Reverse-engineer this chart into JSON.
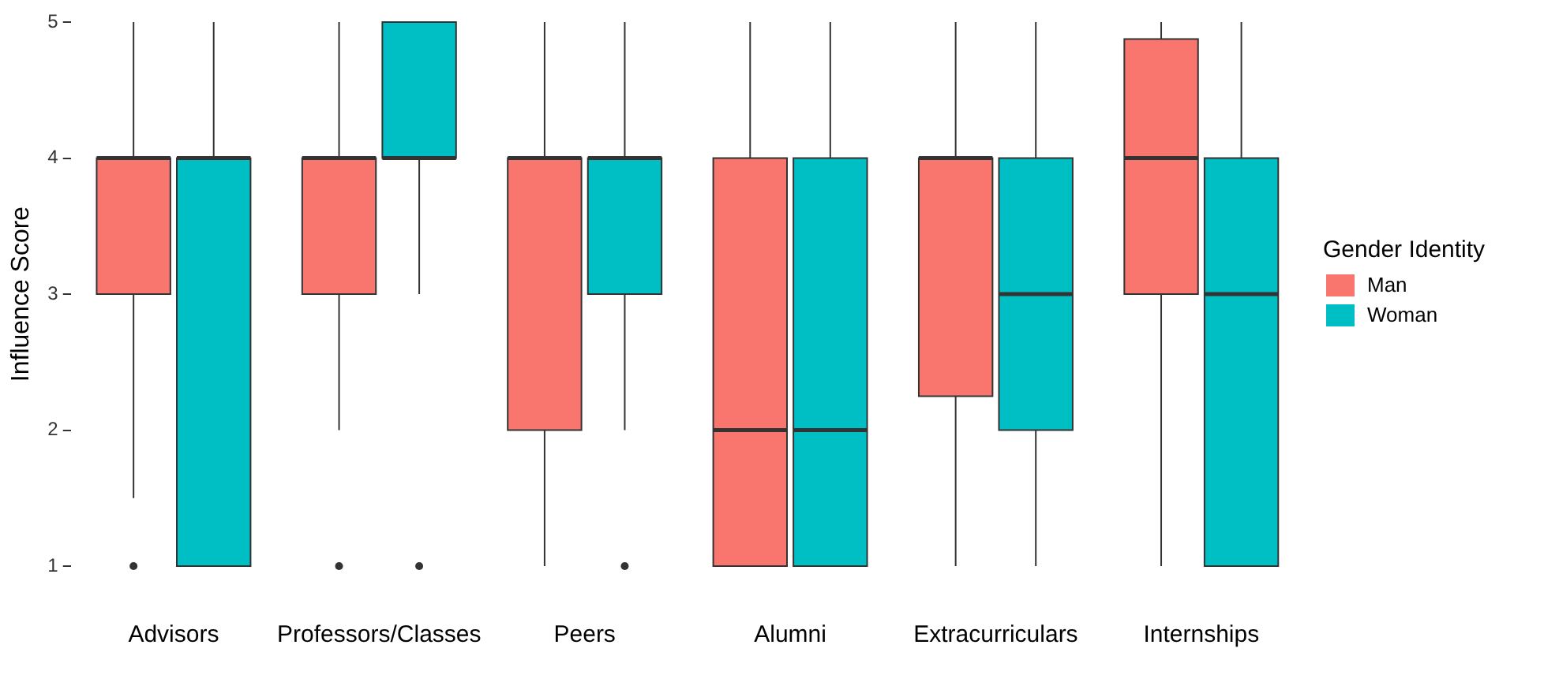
{
  "chart_data": {
    "type": "box",
    "ylabel": "Influence Score",
    "legend_title": "Gender Identity",
    "legend": "right",
    "grid": false,
    "categories": [
      "Advisors",
      "Professors/Classes",
      "Peers",
      "Alumni",
      "Extracurriculars",
      "Internships"
    ],
    "ylim": [
      1,
      5
    ],
    "yticks": [
      1,
      2,
      3,
      4,
      5
    ],
    "series": [
      {
        "name": "Man",
        "color": "#f8766d",
        "boxes": [
          {
            "low": 1.5,
            "q1": 3,
            "median": 4,
            "q3": 4,
            "high": 5,
            "outliers": [
              1
            ]
          },
          {
            "low": 2,
            "q1": 3,
            "median": 4,
            "q3": 4,
            "high": 5,
            "outliers": [
              1
            ]
          },
          {
            "low": 1,
            "q1": 2,
            "median": 4,
            "q3": 4,
            "high": 5
          },
          {
            "low": 1,
            "q1": 1,
            "median": 2,
            "q3": 4,
            "high": 5
          },
          {
            "low": 1,
            "q1": 2.25,
            "median": 4,
            "q3": 4,
            "high": 5
          },
          {
            "low": 1,
            "q1": 3,
            "median": 4,
            "q3": 4.875,
            "high": 5
          }
        ]
      },
      {
        "name": "Woman",
        "color": "#00bfc4",
        "boxes": [
          {
            "low": 1,
            "q1": 1,
            "median": 4,
            "q3": 4,
            "high": 5
          },
          {
            "low": 3,
            "q1": 4,
            "median": 4,
            "q3": 5,
            "high": 5,
            "outliers": [
              1
            ]
          },
          {
            "low": 2,
            "q1": 3,
            "median": 4,
            "q3": 4,
            "high": 5,
            "outliers": [
              1
            ]
          },
          {
            "low": 1,
            "q1": 1,
            "median": 2,
            "q3": 4,
            "high": 5
          },
          {
            "low": 1,
            "q1": 2,
            "median": 3,
            "q3": 4,
            "high": 5
          },
          {
            "low": 1,
            "q1": 1,
            "median": 3,
            "q3": 4,
            "high": 5
          }
        ]
      }
    ]
  }
}
